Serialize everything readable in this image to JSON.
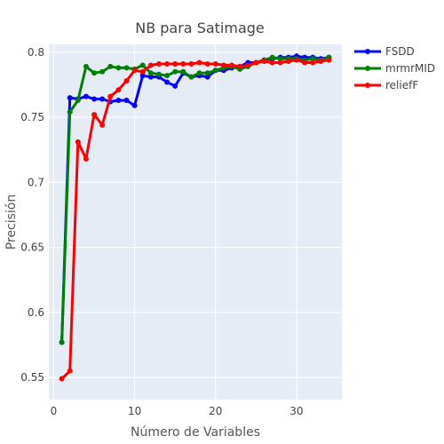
{
  "chart_data": {
    "type": "line",
    "title": "NB para Satimage",
    "xlabel": "Número de Variables",
    "ylabel": "Precisión",
    "xlim": [
      -0.6,
      35.6
    ],
    "ylim": [
      0.533,
      0.806
    ],
    "x_ticks": [
      0,
      10,
      20,
      30
    ],
    "y_ticks": [
      0.55,
      0.6,
      0.65,
      0.7,
      0.75,
      0.8
    ],
    "y_tick_labels": [
      "0.55",
      "0.6",
      "0.65",
      "0.7",
      "0.75",
      "0.8"
    ],
    "grid": true,
    "legend_position": "top-right",
    "background_color": "#E5ECF6",
    "series": [
      {
        "name": "FSDD",
        "color": "#0000FF",
        "x": [
          1,
          2,
          3,
          4,
          5,
          6,
          7,
          8,
          9,
          10,
          11,
          12,
          13,
          14,
          15,
          16,
          17,
          18,
          19,
          20,
          21,
          22,
          23,
          24,
          25,
          26,
          27,
          28,
          29,
          30,
          31,
          32,
          33,
          34
        ],
        "values": [
          0.577,
          0.765,
          0.764,
          0.766,
          0.764,
          0.764,
          0.762,
          0.763,
          0.763,
          0.759,
          0.782,
          0.781,
          0.781,
          0.777,
          0.774,
          0.784,
          0.781,
          0.782,
          0.781,
          0.786,
          0.786,
          0.788,
          0.789,
          0.792,
          0.792,
          0.794,
          0.795,
          0.796,
          0.796,
          0.797,
          0.796,
          0.796,
          0.795,
          0.796
        ]
      },
      {
        "name": "mrmrMID",
        "color": "#008000",
        "x": [
          1,
          2,
          3,
          4,
          5,
          6,
          7,
          8,
          9,
          10,
          11,
          12,
          13,
          14,
          15,
          16,
          17,
          18,
          19,
          20,
          21,
          22,
          23,
          24,
          25,
          26,
          27,
          28,
          29,
          30,
          31,
          32,
          33,
          34
        ],
        "values": [
          0.577,
          0.754,
          0.763,
          0.789,
          0.784,
          0.785,
          0.789,
          0.788,
          0.788,
          0.787,
          0.79,
          0.784,
          0.783,
          0.782,
          0.785,
          0.785,
          0.781,
          0.784,
          0.784,
          0.786,
          0.788,
          0.789,
          0.787,
          0.789,
          0.792,
          0.794,
          0.796,
          0.795,
          0.795,
          0.795,
          0.794,
          0.795,
          0.794,
          0.796
        ]
      },
      {
        "name": "reliefF",
        "color": "#FF0000",
        "x": [
          1,
          2,
          3,
          4,
          5,
          6,
          7,
          8,
          9,
          10,
          11,
          12,
          13,
          14,
          15,
          16,
          17,
          18,
          19,
          20,
          21,
          22,
          23,
          24,
          25,
          26,
          27,
          28,
          29,
          30,
          31,
          32,
          33,
          34
        ],
        "values": [
          0.549,
          0.555,
          0.731,
          0.718,
          0.752,
          0.744,
          0.766,
          0.771,
          0.778,
          0.786,
          0.785,
          0.79,
          0.791,
          0.791,
          0.791,
          0.791,
          0.791,
          0.792,
          0.791,
          0.791,
          0.79,
          0.79,
          0.789,
          0.79,
          0.792,
          0.793,
          0.792,
          0.792,
          0.793,
          0.794,
          0.792,
          0.792,
          0.793,
          0.794
        ]
      }
    ]
  }
}
